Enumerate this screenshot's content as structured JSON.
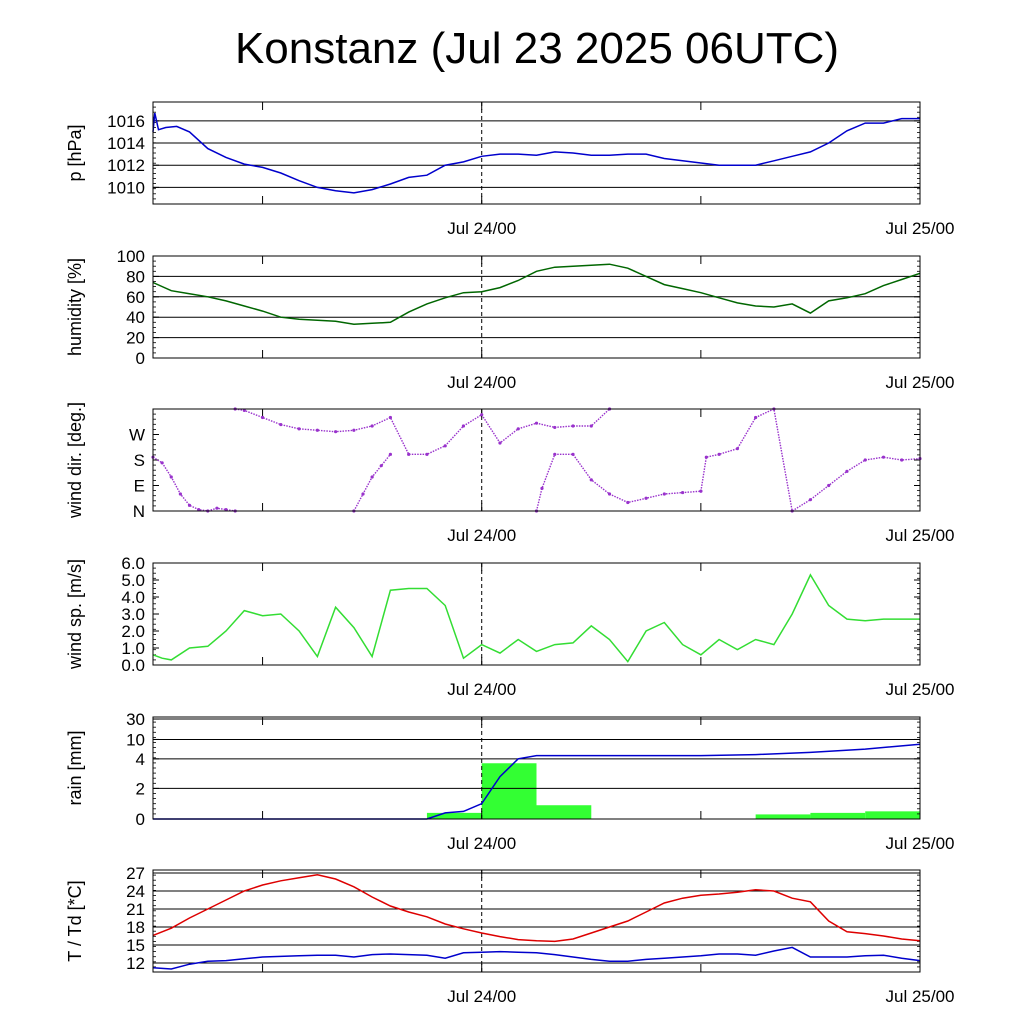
{
  "title": "Konstanz (Jul 23 2025 06UTC)",
  "x_tick_labels": [
    "Jul 24/00",
    "Jul 25/00"
  ],
  "chart_data": [
    {
      "type": "line",
      "ylabel": "p [hPa]",
      "x_ticks": [
        "Jul 24/00",
        "Jul 25/00"
      ],
      "x_range_hours": [
        0,
        42
      ],
      "ylim": [
        1008.5,
        1017.7
      ],
      "ytick_labels": [
        "1010",
        "1012",
        "1014",
        "1016"
      ],
      "ytick_values": [
        1010,
        1012,
        1014,
        1016
      ],
      "grid": true,
      "series": [
        {
          "color": "#0000cc",
          "x": [
            0,
            0.1,
            0.3,
            0.7,
            1.3,
            2,
            3,
            4,
            5,
            6,
            7,
            8,
            9,
            10,
            11,
            12,
            13,
            14,
            15,
            16,
            17,
            18,
            19,
            20,
            21,
            22,
            23,
            24,
            25,
            26,
            27,
            28,
            29,
            30,
            31,
            32,
            33,
            34,
            35,
            36,
            37,
            38,
            39,
            40,
            41,
            42
          ],
          "y": [
            1015.0,
            1016.7,
            1015.2,
            1015.4,
            1015.5,
            1015.0,
            1013.5,
            1012.7,
            1012.1,
            1011.8,
            1011.3,
            1010.6,
            1010.0,
            1009.7,
            1009.5,
            1009.8,
            1010.3,
            1010.9,
            1011.1,
            1012.0,
            1012.3,
            1012.8,
            1013.0,
            1013.0,
            1012.9,
            1013.2,
            1013.1,
            1012.9,
            1012.9,
            1013.0,
            1013.0,
            1012.6,
            1012.4,
            1012.2,
            1012.0,
            1012.0,
            1012.0,
            1012.4,
            1012.8,
            1013.2,
            1014.0,
            1015.1,
            1015.8,
            1015.8,
            1016.2,
            1016.2
          ]
        }
      ]
    },
    {
      "type": "line",
      "ylabel": "humidity [%]",
      "x_ticks": [
        "Jul 24/00",
        "Jul 25/00"
      ],
      "x_range_hours": [
        0,
        42
      ],
      "ylim": [
        0,
        100
      ],
      "ytick_labels": [
        "0",
        "20",
        "40",
        "60",
        "80",
        "100"
      ],
      "ytick_values": [
        0,
        20,
        40,
        60,
        80,
        100
      ],
      "grid": true,
      "series": [
        {
          "color": "#006600",
          "x": [
            0,
            1,
            2,
            3,
            4,
            5,
            6,
            7,
            8,
            9,
            10,
            11,
            12,
            13,
            14,
            15,
            16,
            17,
            18,
            19,
            20,
            21,
            22,
            23,
            24,
            25,
            26,
            27,
            28,
            29,
            30,
            31,
            32,
            33,
            34,
            35,
            36,
            37,
            38,
            39,
            40,
            41,
            42
          ],
          "y": [
            74,
            66,
            63,
            60,
            56,
            51,
            46,
            40,
            38,
            37,
            36,
            33,
            34,
            35,
            45,
            53,
            59,
            64,
            65,
            69,
            76,
            85,
            89,
            90,
            91,
            92,
            88,
            80,
            72,
            68,
            64,
            59,
            54,
            51,
            50,
            53,
            44,
            56,
            59,
            63,
            71,
            77,
            83
          ]
        }
      ]
    },
    {
      "type": "scatter",
      "ylabel": "wind dir. [deg.]",
      "x_ticks": [
        "Jul 24/00",
        "Jul 25/00"
      ],
      "x_range_hours": [
        0,
        42
      ],
      "ylim": [
        0,
        360
      ],
      "ytick_labels": [
        "N",
        "E",
        "S",
        "W"
      ],
      "ytick_values": [
        0,
        90,
        180,
        270
      ],
      "grid": false,
      "series": [
        {
          "color": "#9932cc",
          "name": "",
          "x": [
            0,
            0.5,
            1,
            1.5,
            2,
            2.5,
            3,
            3.5,
            4,
            4.5
          ],
          "y": [
            190,
            170,
            120,
            60,
            20,
            5,
            0,
            10,
            5,
            0
          ]
        },
        {
          "color": "#9932cc",
          "name": "",
          "x": [
            4.5,
            5,
            6,
            7,
            8,
            9,
            10,
            11,
            12,
            13,
            14,
            15,
            16,
            17,
            18,
            19,
            20,
            21,
            22,
            23,
            24,
            25
          ],
          "y": [
            360,
            355,
            330,
            305,
            290,
            285,
            280,
            285,
            300,
            330,
            200,
            200,
            230,
            300,
            340,
            240,
            290,
            310,
            295,
            300,
            300,
            360
          ]
        },
        {
          "color": "#9932cc",
          "name": "",
          "x": [
            11,
            11.5,
            12,
            12.5,
            13
          ],
          "y": [
            0,
            60,
            120,
            160,
            200
          ]
        },
        {
          "color": "#9932cc",
          "name": "",
          "x": [
            21,
            21.3,
            22,
            23,
            24,
            25,
            26,
            27,
            28,
            29,
            30
          ],
          "y": [
            0,
            80,
            200,
            200,
            110,
            60,
            30,
            45,
            60,
            65,
            70
          ]
        },
        {
          "color": "#9932cc",
          "name": "",
          "x": [
            30,
            30.3,
            31,
            32,
            33,
            34,
            35,
            36,
            37,
            38,
            39,
            40,
            41,
            42
          ],
          "y": [
            70,
            190,
            200,
            220,
            330,
            360,
            0,
            40,
            90,
            140,
            180,
            190,
            180,
            185
          ]
        }
      ]
    },
    {
      "type": "line",
      "ylabel": "wind sp. [m/s]",
      "x_ticks": [
        "Jul 24/00",
        "Jul 25/00"
      ],
      "x_range_hours": [
        0,
        42
      ],
      "ylim": [
        0,
        6
      ],
      "ytick_labels": [
        "0.0",
        "1.0",
        "2.0",
        "3.0",
        "4.0",
        "5.0",
        "6.0"
      ],
      "ytick_values": [
        0,
        1,
        2,
        3,
        4,
        5,
        6
      ],
      "grid": false,
      "series": [
        {
          "color": "#33dd33",
          "x": [
            0,
            0.5,
            1,
            2,
            3,
            4,
            5,
            6,
            7,
            8,
            9,
            10,
            11,
            12,
            13,
            14,
            15,
            16,
            17,
            18,
            19,
            20,
            21,
            22,
            23,
            24,
            25,
            26,
            27,
            28,
            29,
            30,
            31,
            32,
            33,
            34,
            35,
            36,
            37,
            38,
            39,
            40,
            41,
            42
          ],
          "y": [
            0.6,
            0.4,
            0.3,
            1.0,
            1.1,
            2.0,
            3.2,
            2.9,
            3.0,
            2.0,
            0.5,
            3.4,
            2.2,
            0.5,
            4.4,
            4.5,
            4.5,
            3.5,
            0.4,
            1.2,
            0.7,
            1.5,
            0.8,
            1.2,
            1.3,
            2.3,
            1.5,
            0.2,
            2.0,
            2.5,
            1.2,
            0.6,
            1.5,
            0.9,
            1.5,
            1.2,
            3.0,
            5.3,
            3.5,
            2.7,
            2.6,
            2.7,
            2.7,
            2.7
          ]
        }
      ]
    },
    {
      "type": "bar",
      "ylabel": "rain [mm]",
      "x_ticks": [
        "Jul 24/00",
        "Jul 25/00"
      ],
      "x_range_hours": [
        0,
        42
      ],
      "ytick_labels": [
        "0",
        "2",
        "4",
        "10",
        "30"
      ],
      "ytick_values": [
        0,
        2,
        4,
        10,
        30
      ],
      "grid": true,
      "bars": {
        "color": "#33ff33",
        "x_start": [
          0,
          15,
          18,
          21,
          24,
          27,
          30,
          33,
          36,
          39
        ],
        "x_end": [
          15,
          18,
          21,
          24,
          27,
          30,
          33,
          36,
          39,
          42
        ],
        "values": [
          0,
          0.4,
          3.7,
          0.9,
          0,
          0,
          0,
          0.3,
          0.4,
          0.5
        ]
      },
      "series": [
        {
          "color": "#0000cc",
          "name": "",
          "x": [
            0,
            15,
            16,
            17,
            18,
            19,
            20,
            21,
            22,
            24,
            27,
            30,
            33,
            36,
            39,
            42
          ],
          "y": [
            0,
            0,
            0.4,
            0.5,
            1.0,
            2.8,
            4.0,
            5.0,
            5.0,
            5.0,
            5.0,
            5.0,
            5.3,
            6.0,
            7.0,
            8.5
          ]
        }
      ]
    },
    {
      "type": "line",
      "ylabel": "T / Td [*C]",
      "x_ticks": [
        "Jul 24/00",
        "Jul 25/00"
      ],
      "x_range_hours": [
        0,
        42
      ],
      "ylim": [
        10.5,
        27.5
      ],
      "ytick_labels": [
        "12",
        "15",
        "18",
        "21",
        "24",
        "27"
      ],
      "ytick_values": [
        12,
        15,
        18,
        21,
        24,
        27
      ],
      "grid": true,
      "series": [
        {
          "color": "#dd0000",
          "name": "T",
          "x": [
            0,
            1,
            2,
            3,
            4,
            5,
            6,
            7,
            8,
            9,
            10,
            11,
            12,
            13,
            14,
            15,
            16,
            17,
            18,
            19,
            20,
            21,
            22,
            23,
            24,
            25,
            26,
            27,
            28,
            29,
            30,
            31,
            32,
            33,
            34,
            35,
            36,
            37,
            38,
            39,
            40,
            41,
            42
          ],
          "y": [
            16.6,
            17.8,
            19.5,
            21.0,
            22.5,
            24.0,
            25.0,
            25.7,
            26.2,
            26.7,
            26.0,
            24.7,
            23.0,
            21.5,
            20.5,
            19.7,
            18.5,
            17.7,
            17.0,
            16.4,
            15.9,
            15.7,
            15.6,
            16.0,
            17.0,
            18.0,
            19.0,
            20.5,
            22.0,
            22.8,
            23.3,
            23.5,
            23.8,
            24.2,
            24.0,
            22.8,
            22.2,
            19.0,
            17.2,
            16.9,
            16.5,
            16.0,
            15.7
          ]
        },
        {
          "color": "#0000cc",
          "name": "Td",
          "x": [
            0,
            1,
            2,
            3,
            4,
            5,
            6,
            7,
            8,
            9,
            10,
            11,
            12,
            13,
            14,
            15,
            16,
            17,
            18,
            19,
            20,
            21,
            22,
            23,
            24,
            25,
            26,
            27,
            28,
            29,
            30,
            31,
            32,
            33,
            34,
            35,
            36,
            37,
            38,
            39,
            40,
            41,
            42
          ],
          "y": [
            11.2,
            11.0,
            11.8,
            12.3,
            12.4,
            12.7,
            13.0,
            13.1,
            13.2,
            13.3,
            13.3,
            13.0,
            13.4,
            13.5,
            13.4,
            13.3,
            12.8,
            13.7,
            13.8,
            13.9,
            13.8,
            13.7,
            13.4,
            13.0,
            12.6,
            12.3,
            12.3,
            12.6,
            12.8,
            13.0,
            13.2,
            13.5,
            13.5,
            13.3,
            14.0,
            14.6,
            13.0,
            13.0,
            13.0,
            13.2,
            13.3,
            12.8,
            12.4
          ]
        }
      ]
    }
  ]
}
